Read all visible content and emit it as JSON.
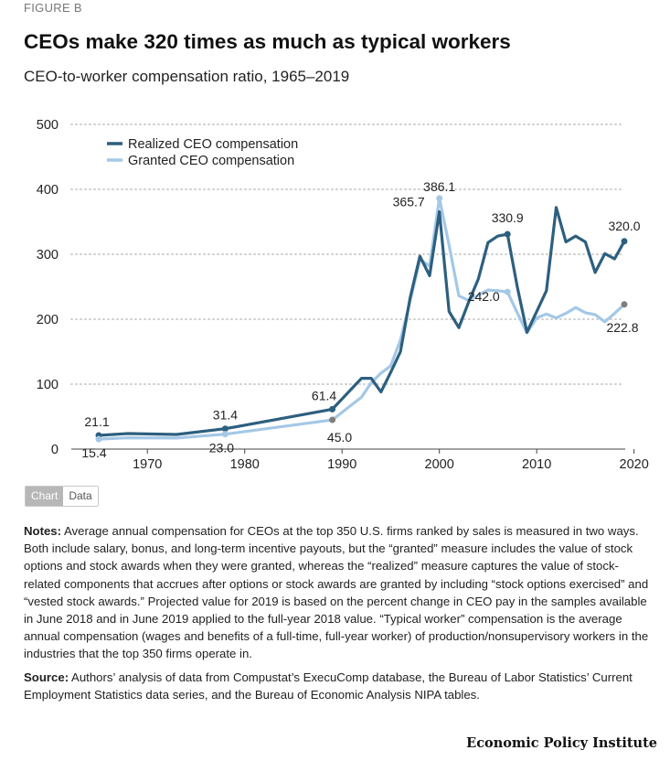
{
  "figure_label": "FIGURE B",
  "title": "CEOs make 320 times as much as typical workers",
  "subtitle": "CEO-to-worker compensation ratio, 1965–2019",
  "toggle": {
    "chart": "Chart",
    "data": "Data"
  },
  "notes": {
    "label": "Notes:",
    "text": "Average annual compensation for CEOs at the top 350 U.S. firms ranked by sales is measured in two ways. Both include salary, bonus, and long-term incentive payouts, but the “granted” measure includes the value of stock options and stock awards when they were granted, whereas the “realized” measure captures the value of stock-related components that accrues after options or stock awards are granted by including “stock options exercised” and “vested stock awards.” Projected value for 2019 is based on the percent change in CEO pay in the samples available in June 2018 and in June 2019 applied to the full-year 2018 value. “Typical worker” compensation is the average annual compensation (wages and benefits of a full-time, full-year worker) of production/nonsupervisory workers in the industries that the top 350 firms operate in."
  },
  "source": {
    "label": "Source:",
    "text": "Authors’ analysis of data from Compustat’s ExecuComp database, the Bureau of Labor Statistics’ Current Employment Statistics data series, and the Bureau of Economic Analysis NIPA tables."
  },
  "brand": "Economic Policy Institute",
  "chart_data": {
    "type": "line",
    "title": "CEOs make 320 times as much as typical workers",
    "subtitle": "CEO-to-worker compensation ratio, 1965–2019",
    "xlim": [
      1964,
      2022
    ],
    "ylim": [
      0,
      500
    ],
    "xticks": [
      1970,
      1980,
      1990,
      2000,
      2010,
      2020
    ],
    "yticks": [
      0,
      100,
      200,
      300,
      400,
      500
    ],
    "grid": "horizontal dotted",
    "legend": "top-left",
    "series": [
      {
        "name": "Realized CEO compensation",
        "color": "#2d5f7f",
        "points": [
          [
            1965,
            21.1
          ],
          [
            1968,
            24
          ],
          [
            1973,
            22.5
          ],
          [
            1978,
            31.4
          ],
          [
            1989,
            61.4
          ],
          [
            1992,
            109
          ],
          [
            1993,
            109
          ],
          [
            1994,
            88
          ],
          [
            1995,
            118
          ],
          [
            1996,
            150
          ],
          [
            1997,
            233
          ],
          [
            1998,
            297
          ],
          [
            1999,
            267
          ],
          [
            2000,
            365.7
          ],
          [
            2001,
            212
          ],
          [
            2002,
            187
          ],
          [
            2003,
            226
          ],
          [
            2004,
            262
          ],
          [
            2005,
            318
          ],
          [
            2006,
            328
          ],
          [
            2007,
            330.9
          ],
          [
            2008,
            250
          ],
          [
            2009,
            180
          ],
          [
            2010,
            212
          ],
          [
            2011,
            244
          ],
          [
            2012,
            372
          ],
          [
            2013,
            319
          ],
          [
            2014,
            328
          ],
          [
            2015,
            319
          ],
          [
            2016,
            272
          ],
          [
            2017,
            301
          ],
          [
            2018,
            293
          ],
          [
            2019,
            320.0
          ]
        ]
      },
      {
        "name": "Granted CEO compensation",
        "color": "#a4c8e6",
        "points": [
          [
            1965,
            15.4
          ],
          [
            1968,
            17.5
          ],
          [
            1973,
            17
          ],
          [
            1978,
            23.0
          ],
          [
            1989,
            45.0
          ],
          [
            1992,
            80
          ],
          [
            1993,
            102
          ],
          [
            1994,
            117
          ],
          [
            1995,
            128
          ],
          [
            1996,
            168
          ],
          [
            1997,
            228
          ],
          [
            1998,
            292
          ],
          [
            1999,
            282
          ],
          [
            2000,
            386.1
          ],
          [
            2001,
            314
          ],
          [
            2002,
            236
          ],
          [
            2003,
            229
          ],
          [
            2004,
            237
          ],
          [
            2005,
            245
          ],
          [
            2006,
            244
          ],
          [
            2007,
            242.0
          ],
          [
            2008,
            210
          ],
          [
            2009,
            179
          ],
          [
            2010,
            202
          ],
          [
            2011,
            208
          ],
          [
            2012,
            202
          ],
          [
            2013,
            209
          ],
          [
            2014,
            218
          ],
          [
            2015,
            210
          ],
          [
            2016,
            207
          ],
          [
            2017,
            196
          ],
          [
            2018,
            209
          ],
          [
            2019,
            222.8
          ]
        ]
      }
    ],
    "data_labels": [
      {
        "text": "21.1",
        "series": 0,
        "x": 1965,
        "y": 21.1,
        "dot": true
      },
      {
        "text": "31.4",
        "series": 0,
        "x": 1978,
        "y": 31.4,
        "dot": true
      },
      {
        "text": "61.4",
        "series": 0,
        "x": 1989,
        "y": 61.4,
        "dot": true
      },
      {
        "text": "365.7",
        "series": 0,
        "x": 2000,
        "y": 365.7,
        "dot": false
      },
      {
        "text": "330.9",
        "series": 0,
        "x": 2007,
        "y": 330.9,
        "dot": true
      },
      {
        "text": "320.0",
        "series": 0,
        "x": 2019,
        "y": 320.0,
        "dot": true
      },
      {
        "text": "15.4",
        "series": 1,
        "x": 1965,
        "y": 15.4,
        "dot": true
      },
      {
        "text": "23.0",
        "series": 1,
        "x": 1978,
        "y": 23.0,
        "dot": true
      },
      {
        "text": "45.0",
        "series": 1,
        "x": 1989,
        "y": 45.0,
        "dot": true
      },
      {
        "text": "386.1",
        "series": 1,
        "x": 2000,
        "y": 386.1,
        "dot": true
      },
      {
        "text": "242.0",
        "series": 1,
        "x": 2007,
        "y": 242.0,
        "dot": true
      },
      {
        "text": "222.8",
        "series": 1,
        "x": 2019,
        "y": 222.8,
        "dot": true
      }
    ]
  }
}
